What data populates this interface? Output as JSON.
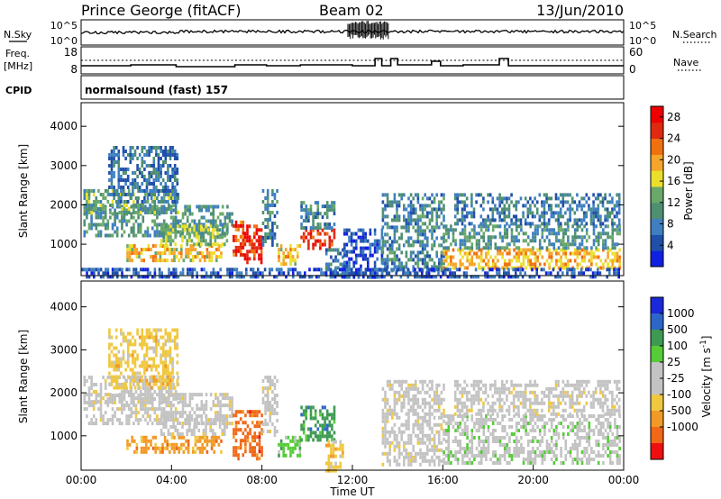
{
  "header": {
    "station": "Prince George (fitACF)",
    "beam": "Beam 02",
    "date": "13/Jun/2010"
  },
  "params": {
    "nsky_label": "N.Sky",
    "nsky_ticks": [
      "10^5",
      "10^0"
    ],
    "nsearch_label": "N.Search",
    "nsearch_ticks": [
      "10^5",
      "10^0"
    ],
    "freq_label_top": "Freq.",
    "freq_label_unit": "[MHz]",
    "freq_ticks": [
      "18",
      "8"
    ],
    "nave_label": "Nave",
    "nave_ticks": [
      "60",
      "0"
    ],
    "cpid_label": "CPID",
    "cpid_text": "normalsound (fast) 157"
  },
  "colors": {
    "power": [
      "#1020e0",
      "#1f4fa8",
      "#3f7fc0",
      "#4e8f72",
      "#6aa86a",
      "#eadf2c",
      "#f5a52a",
      "#f0700f",
      "#e02a10",
      "#ee0000"
    ],
    "velocity": [
      "#1a28d8",
      "#2d66c8",
      "#3e9a52",
      "#56cc38",
      "#c3c3c3",
      "#c3c3c3",
      "#f0c840",
      "#f19a28",
      "#f06818",
      "#ee1010"
    ]
  },
  "chart_data": [
    {
      "type": "heatmap",
      "name": "power",
      "xlabel": "",
      "ylabel": "Slant Range [km]",
      "y_ticks": [
        "1000",
        "2000",
        "3000",
        "4000"
      ],
      "ylim": [
        200,
        4600
      ],
      "colorbar_label": "Power [dB]",
      "colorbar_ticks": [
        "4",
        "8",
        "12",
        "16",
        "20",
        "24",
        "28"
      ],
      "colorbar_range": [
        0,
        30
      ],
      "regions": [
        {
          "t0": 0.1,
          "t1": 6.7,
          "r0": 1250,
          "r1": 2000,
          "v": 10
        },
        {
          "t0": 0.1,
          "t1": 4.3,
          "r0": 1800,
          "r1": 2400,
          "v": 12
        },
        {
          "t0": 1.2,
          "t1": 4.3,
          "r0": 2100,
          "r1": 3500,
          "v": 7
        },
        {
          "t0": 2.0,
          "t1": 6.2,
          "r0": 600,
          "r1": 1000,
          "v": 18
        },
        {
          "t0": 3.5,
          "t1": 6.5,
          "r0": 1000,
          "r1": 1500,
          "v": 14
        },
        {
          "t0": 6.7,
          "t1": 7.2,
          "r0": 700,
          "r1": 1600,
          "v": 24
        },
        {
          "t0": 7.2,
          "t1": 8.0,
          "r0": 500,
          "r1": 1500,
          "v": 27
        },
        {
          "t0": 8.0,
          "t1": 8.7,
          "r0": 1000,
          "r1": 2400,
          "v": 9
        },
        {
          "t0": 8.7,
          "t1": 9.7,
          "r0": 500,
          "r1": 1000,
          "v": 18
        },
        {
          "t0": 9.7,
          "t1": 11.2,
          "r0": 900,
          "r1": 1400,
          "v": 25
        },
        {
          "t0": 9.7,
          "t1": 11.2,
          "r0": 1400,
          "r1": 2100,
          "v": 9
        },
        {
          "t0": 10.8,
          "t1": 11.6,
          "r0": 200,
          "r1": 900,
          "v": 8
        },
        {
          "t0": 11.6,
          "t1": 13.3,
          "r0": 200,
          "r1": 1400,
          "v": 5
        },
        {
          "t0": 13.3,
          "t1": 16.0,
          "r0": 300,
          "r1": 2300,
          "v": 9
        },
        {
          "t0": 16.0,
          "t1": 23.8,
          "r0": 400,
          "r1": 900,
          "v": 19
        },
        {
          "t0": 16.0,
          "t1": 23.8,
          "r0": 900,
          "r1": 1500,
          "v": 10
        },
        {
          "t0": 16.5,
          "t1": 23.8,
          "r0": 1500,
          "r1": 2300,
          "v": 8
        },
        {
          "t0": 0.0,
          "t1": 23.8,
          "r0": 200,
          "r1": 400,
          "v": 5
        }
      ]
    },
    {
      "type": "heatmap",
      "name": "velocity",
      "xlabel": "Time UT",
      "ylabel": "Slant Range [km]",
      "x_ticks": [
        "00:00",
        "04:00",
        "08:00",
        "12:00",
        "16:00",
        "20:00",
        "00:00"
      ],
      "xlim": [
        0,
        24
      ],
      "y_ticks": [
        "1000",
        "2000",
        "3000",
        "4000"
      ],
      "ylim": [
        200,
        4600
      ],
      "colorbar_label": "Velocity [m s^-1]",
      "colorbar_ticks": [
        "1000",
        "500",
        "100",
        "25",
        "-25",
        "-100",
        "-500",
        "-1000"
      ],
      "regions": [
        {
          "t0": 0.1,
          "t1": 6.7,
          "r0": 1250,
          "r1": 2000,
          "v": 5
        },
        {
          "t0": 0.1,
          "t1": 4.3,
          "r0": 1800,
          "r1": 2400,
          "v": 5
        },
        {
          "t0": 1.2,
          "t1": 4.3,
          "r0": 2100,
          "r1": 3500,
          "v": 6
        },
        {
          "t0": 2.0,
          "t1": 6.2,
          "r0": 600,
          "r1": 1000,
          "v": 7
        },
        {
          "t0": 3.5,
          "t1": 6.5,
          "r0": 1000,
          "r1": 1500,
          "v": 5
        },
        {
          "t0": 6.7,
          "t1": 8.0,
          "r0": 500,
          "r1": 1600,
          "v": 8
        },
        {
          "t0": 8.0,
          "t1": 8.7,
          "r0": 1000,
          "r1": 2400,
          "v": 5
        },
        {
          "t0": 8.7,
          "t1": 9.7,
          "r0": 500,
          "r1": 1000,
          "v": 3
        },
        {
          "t0": 9.7,
          "t1": 11.2,
          "r0": 900,
          "r1": 1700,
          "v": 2
        },
        {
          "t0": 10.8,
          "t1": 11.6,
          "r0": 200,
          "r1": 900,
          "v": 6
        },
        {
          "t0": 13.3,
          "t1": 16.0,
          "r0": 300,
          "r1": 2300,
          "v": 5
        },
        {
          "t0": 16.0,
          "t1": 23.8,
          "r0": 400,
          "r1": 1500,
          "v": 4
        },
        {
          "t0": 16.5,
          "t1": 23.8,
          "r0": 1500,
          "r1": 2300,
          "v": 5
        }
      ]
    }
  ]
}
